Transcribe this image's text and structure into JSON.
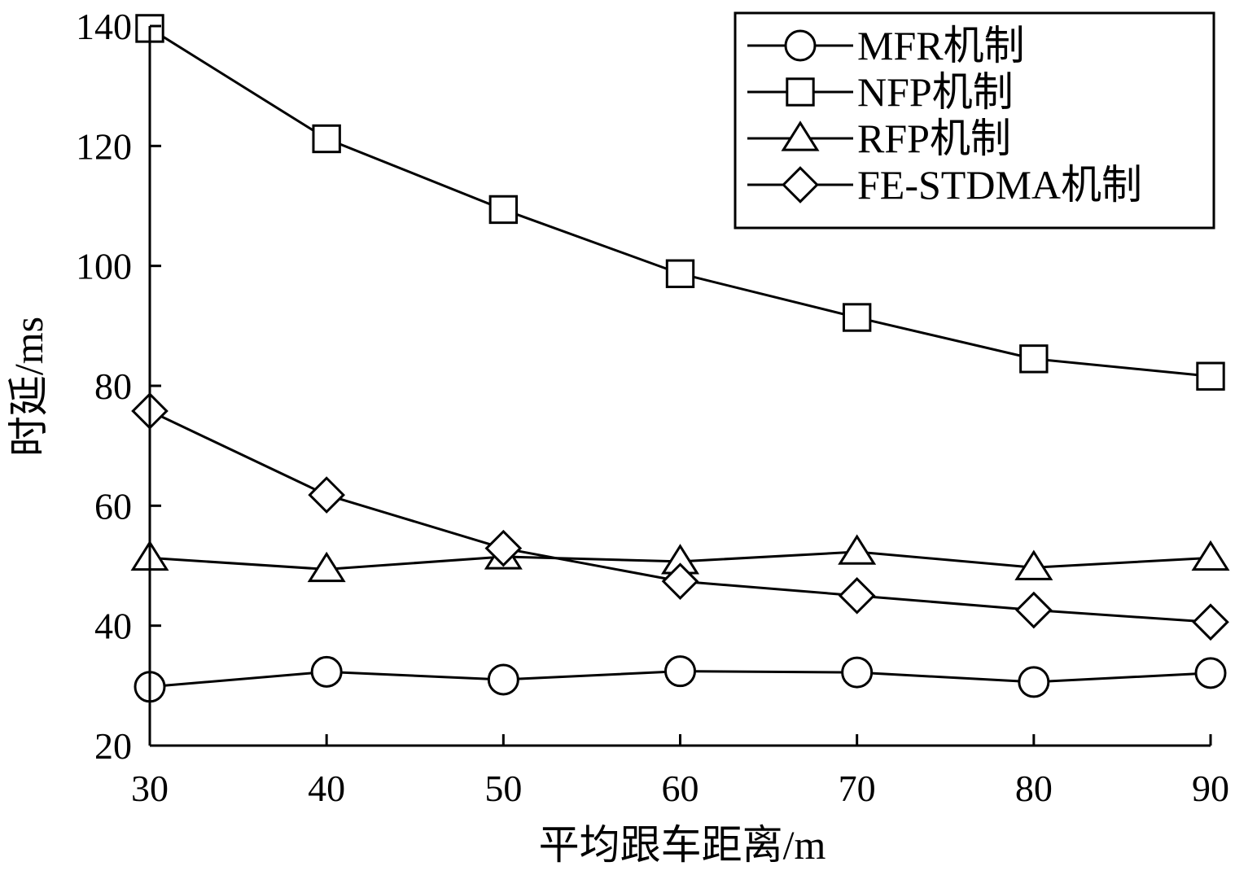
{
  "chart_data": {
    "type": "line",
    "title": "",
    "xlabel": "平均跟车距离/m",
    "ylabel": "时延/ms",
    "x": [
      30,
      40,
      50,
      60,
      70,
      80,
      90
    ],
    "xlim": [
      30,
      90
    ],
    "ylim": [
      20,
      140
    ],
    "xticks": [
      "30",
      "40",
      "50",
      "60",
      "70",
      "80",
      "90"
    ],
    "yticks": [
      "20",
      "40",
      "60",
      "80",
      "100",
      "120",
      "140"
    ],
    "grid": false,
    "legend_position": "top-right",
    "series": [
      {
        "name": "MFR机制",
        "marker": "circle",
        "values": [
          29.8,
          32.3,
          31.0,
          32.4,
          32.2,
          30.6,
          32.1
        ]
      },
      {
        "name": "NFP机制",
        "marker": "square",
        "values": [
          139.6,
          121.2,
          109.4,
          98.7,
          91.4,
          84.5,
          81.6
        ]
      },
      {
        "name": "RFP机制",
        "marker": "triangle",
        "values": [
          51.3,
          49.4,
          51.5,
          50.7,
          52.3,
          49.7,
          51.3
        ]
      },
      {
        "name": "FE-STDMA机制",
        "marker": "diamond",
        "values": [
          75.8,
          61.8,
          52.9,
          47.4,
          45.0,
          42.6,
          40.6
        ]
      }
    ],
    "colors": {
      "line": "#000000",
      "marker_fill": "#ffffff"
    }
  }
}
